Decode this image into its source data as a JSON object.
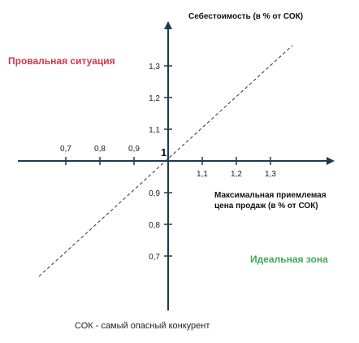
{
  "diagram": {
    "y_axis_title": "Себестоимость (в % от СОК)",
    "x_axis_title_line1": "Максимальная приемлемая",
    "x_axis_title_line2": "цена продаж (в % от СОК)",
    "origin_label": "1",
    "zone_fail": "Провальная ситуация",
    "zone_ideal": "Идеальная зона",
    "footnote": "СОК - самый опасный конкурент",
    "colors": {
      "axis": "#1f3a4d",
      "zone_fail": "#d6334a",
      "zone_ideal": "#3fa95a",
      "dashed": "#333333"
    }
  },
  "chart_data": {
    "type": "line",
    "xlabel": "Максимальная приемлемая цена продаж (в % от СОК)",
    "ylabel": "Себестоимость (в % от СОК)",
    "x_ticks_left": [
      "0,7",
      "0,8",
      "0,9"
    ],
    "x_ticks_right": [
      "1,1",
      "1,2",
      "1,3"
    ],
    "y_ticks_up": [
      "1,1",
      "1,2",
      "1,3"
    ],
    "y_ticks_down": [
      "0,9",
      "0,8",
      "0,7"
    ],
    "origin": 1,
    "series": [
      {
        "x": [
          0.65,
          1.4
        ],
        "y": [
          0.65,
          1.4
        ],
        "style": "dashed"
      }
    ],
    "grid": false
  }
}
